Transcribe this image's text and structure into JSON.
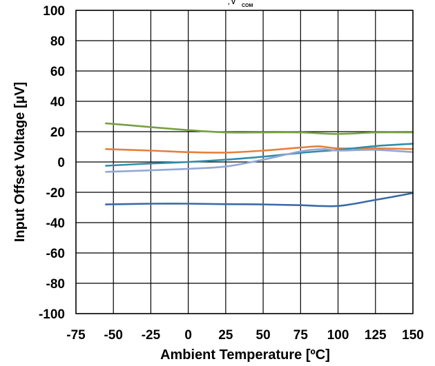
{
  "chart_data": {
    "type": "line",
    "title": "",
    "top_fragment": ", V",
    "top_fragment_sub": "COM",
    "xlabel": "Ambient Temperature [ºC]",
    "ylabel": "Input Offset Voltage [µV]",
    "xlim": [
      -75,
      150
    ],
    "ylim": [
      -100,
      100
    ],
    "xticks": [
      -75,
      -50,
      -25,
      0,
      25,
      50,
      75,
      100,
      125,
      150
    ],
    "yticks": [
      100,
      80,
      60,
      40,
      20,
      0,
      -20,
      -40,
      -60,
      -80,
      -100
    ],
    "grid": true,
    "legend": "none",
    "series": [
      {
        "color": "#77a043",
        "points": [
          [
            -55,
            25.5
          ],
          [
            -25,
            23
          ],
          [
            0,
            21
          ],
          [
            25,
            19.5
          ],
          [
            50,
            19.5
          ],
          [
            75,
            19.5
          ],
          [
            100,
            18.5
          ],
          [
            125,
            19.5
          ],
          [
            150,
            19.5
          ]
        ]
      },
      {
        "color": "#e5803a",
        "points": [
          [
            -55,
            8.5
          ],
          [
            -25,
            7.5
          ],
          [
            0,
            6.5
          ],
          [
            25,
            6.2
          ],
          [
            50,
            7.5
          ],
          [
            75,
            9.5
          ],
          [
            87,
            10.3
          ],
          [
            100,
            9
          ],
          [
            125,
            9
          ],
          [
            150,
            8.5
          ]
        ]
      },
      {
        "color": "#2f8ea8",
        "points": [
          [
            -55,
            -2.5
          ],
          [
            -25,
            -1
          ],
          [
            0,
            0
          ],
          [
            25,
            1.5
          ],
          [
            50,
            3.5
          ],
          [
            75,
            6
          ],
          [
            100,
            8
          ],
          [
            125,
            10.5
          ],
          [
            150,
            12
          ]
        ]
      },
      {
        "color": "#93a7d5",
        "points": [
          [
            -55,
            -6.5
          ],
          [
            -25,
            -5.5
          ],
          [
            0,
            -4.5
          ],
          [
            25,
            -3
          ],
          [
            50,
            1.5
          ],
          [
            75,
            7
          ],
          [
            90,
            8.5
          ],
          [
            100,
            7.5
          ],
          [
            125,
            8
          ],
          [
            150,
            6.5
          ]
        ]
      },
      {
        "color": "#3a6aa5",
        "points": [
          [
            -55,
            -28
          ],
          [
            -25,
            -27.5
          ],
          [
            0,
            -27.5
          ],
          [
            25,
            -27.8
          ],
          [
            50,
            -28
          ],
          [
            75,
            -28.5
          ],
          [
            100,
            -29
          ],
          [
            125,
            -25
          ],
          [
            150,
            -20.5
          ]
        ]
      }
    ]
  }
}
